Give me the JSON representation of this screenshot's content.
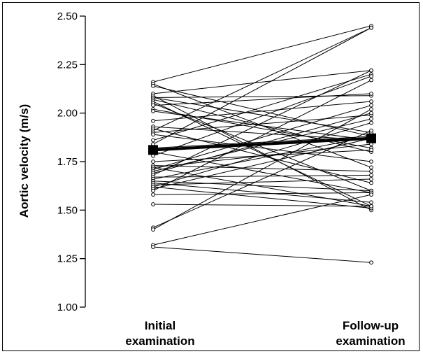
{
  "chart_data": {
    "type": "line",
    "ylabel": "Aortic velocity (m/s)",
    "ylim": [
      1.0,
      2.5
    ],
    "yticks": [
      "1.00",
      "1.25",
      "1.50",
      "1.75",
      "2.00",
      "2.25",
      "2.50"
    ],
    "categories": [
      [
        "Initial",
        "examination"
      ],
      [
        "Follow-up",
        "examination"
      ]
    ],
    "grid": false,
    "mean": {
      "initial": 1.81,
      "followup": 1.87
    },
    "pairs": [
      [
        2.16,
        2.45
      ],
      [
        2.15,
        1.72
      ],
      [
        2.14,
        1.88
      ],
      [
        2.1,
        2.22
      ],
      [
        2.09,
        1.5
      ],
      [
        2.08,
        2.09
      ],
      [
        2.08,
        1.9
      ],
      [
        2.07,
        1.8
      ],
      [
        2.06,
        1.52
      ],
      [
        2.05,
        1.6
      ],
      [
        2.04,
        2.1
      ],
      [
        2.02,
        1.82
      ],
      [
        2.01,
        1.86
      ],
      [
        1.96,
        2.06
      ],
      [
        1.93,
        1.86
      ],
      [
        1.92,
        1.64
      ],
      [
        1.91,
        2.44
      ],
      [
        1.9,
        1.99
      ],
      [
        1.89,
        1.75
      ],
      [
        1.86,
        2.2
      ],
      [
        1.84,
        2.44
      ],
      [
        1.82,
        1.88
      ],
      [
        1.8,
        1.59
      ],
      [
        1.78,
        2.19
      ],
      [
        1.75,
        1.81
      ],
      [
        1.73,
        1.7
      ],
      [
        1.72,
        1.84
      ],
      [
        1.72,
        1.52
      ],
      [
        1.71,
        2.04
      ],
      [
        1.7,
        1.97
      ],
      [
        1.69,
        2.0
      ],
      [
        1.68,
        2.22
      ],
      [
        1.67,
        1.68
      ],
      [
        1.66,
        1.88
      ],
      [
        1.65,
        1.6
      ],
      [
        1.64,
        1.54
      ],
      [
        1.63,
        1.66
      ],
      [
        1.62,
        1.95
      ],
      [
        1.62,
        1.51
      ],
      [
        1.61,
        1.87
      ],
      [
        1.6,
        2.17
      ],
      [
        1.58,
        1.59
      ],
      [
        1.53,
        1.52
      ],
      [
        1.41,
        1.91
      ],
      [
        1.4,
        2.02
      ],
      [
        1.32,
        1.58
      ],
      [
        1.31,
        1.23
      ]
    ]
  }
}
